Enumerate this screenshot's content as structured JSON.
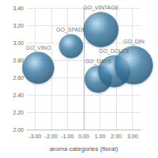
{
  "chart_data": {
    "type": "bubble",
    "xlabel": "aroma categories (floral)",
    "labels": [
      "GO_VINO",
      "GO_SPADE",
      "GO_VINTAGE",
      "GO_DAYS",
      "GO_DOLCE",
      "GO_DIN"
    ],
    "x": [
      -2.8,
      -0.78,
      1.06,
      0.89,
      1.88,
      3.08
    ],
    "values": [
      2.71,
      2.96,
      3.15,
      2.58,
      2.67,
      2.74
    ],
    "sizes": [
      400,
      225,
      484,
      289,
      400,
      576
    ],
    "color": "#3f7fa8",
    "xlim": [
      -3.5,
      3.5
    ],
    "xticks": [
      {
        "value": -3,
        "label": "-3.00"
      },
      {
        "value": -2,
        "label": "-2.00"
      },
      {
        "value": -1,
        "label": "-1.00"
      },
      {
        "value": 0,
        "label": "0.00"
      },
      {
        "value": 1,
        "label": "1.00"
      },
      {
        "value": 2,
        "label": "2.00"
      },
      {
        "value": 3,
        "label": "3.00"
      }
    ],
    "ylim": [
      2,
      3.4
    ],
    "yticks": [
      {
        "value": 2,
        "label": "2.00"
      },
      {
        "value": 2.2,
        "label": "2.20"
      },
      {
        "value": 2.4,
        "label": "2.40"
      },
      {
        "value": 2.6,
        "label": "2.60"
      },
      {
        "value": 2.8,
        "label": "2.80"
      },
      {
        "value": 3,
        "label": "3.00"
      },
      {
        "value": 3.2,
        "label": "3.20"
      },
      {
        "value": 3.4,
        "label": "3.40"
      }
    ],
    "grid": true
  }
}
